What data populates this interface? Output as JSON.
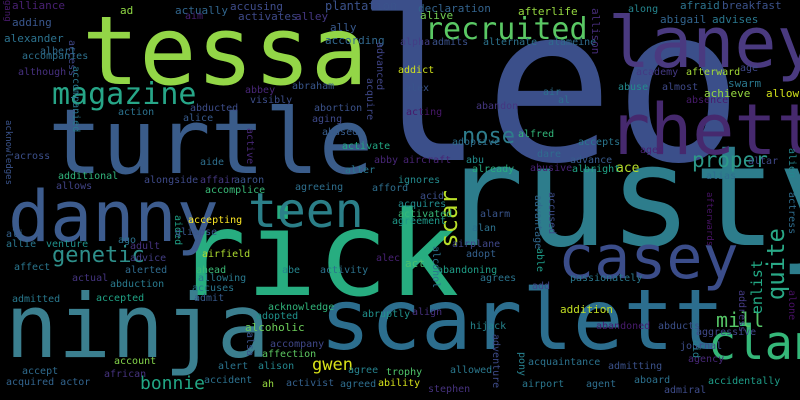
{
  "words": [
    {
      "text": "leo",
      "color": "#3b4f8a"
    },
    {
      "text": "rusty",
      "color": "#2d7d8c"
    },
    {
      "text": "rick",
      "color": "#27ad80"
    },
    {
      "text": "tessa",
      "color": "#93d647"
    },
    {
      "text": "turtle",
      "color": "#3a5c8a"
    },
    {
      "text": "ninja",
      "color": "#3b7f8f"
    },
    {
      "text": "scarlett",
      "color": "#2c6e8e"
    },
    {
      "text": "danny",
      "color": "#3d5c8e"
    },
    {
      "text": "laney",
      "color": "#4a3a80"
    },
    {
      "text": "rhett",
      "color": "#46296e"
    },
    {
      "text": "casey",
      "color": "#3b4d8a"
    },
    {
      "text": "teen",
      "color": "#2b7f88"
    },
    {
      "text": "clan",
      "color": "#35b779"
    },
    {
      "text": "magazine",
      "color": "#27a688"
    },
    {
      "text": "recruited",
      "color": "#5ac864"
    },
    {
      "text": "nose",
      "color": "#2e7d8c"
    },
    {
      "text": "scar",
      "color": "#b8de29"
    },
    {
      "text": "quite",
      "color": "#29a886"
    },
    {
      "text": "genetic",
      "color": "#2e8f8a"
    },
    {
      "text": "proper",
      "color": "#2c9889"
    },
    {
      "text": "mill",
      "color": "#56c667"
    },
    {
      "text": "bonnie",
      "color": "#22a785"
    },
    {
      "text": "gwen",
      "color": "#d8e219"
    },
    {
      "text": "enlist",
      "color": "#22a884"
    },
    {
      "text": "ace",
      "color": "#b5de2b"
    },
    {
      "text": "allison",
      "color": "#472d7b"
    },
    {
      "text": "alliance",
      "color": "#482071"
    },
    {
      "text": "ad",
      "color": "#8fd744"
    },
    {
      "text": "actually",
      "color": "#31668e"
    },
    {
      "text": "accusing",
      "color": "#3e4c8a"
    },
    {
      "text": "plantation",
      "color": "#3b528b"
    },
    {
      "text": "declaration",
      "color": "#33638d"
    },
    {
      "text": "afterlife",
      "color": "#95d840"
    },
    {
      "text": "along",
      "color": "#25858e"
    },
    {
      "text": "afraid",
      "color": "#2c738e"
    },
    {
      "text": "breakfast",
      "color": "#3b528b"
    },
    {
      "text": "adding",
      "color": "#39568c"
    },
    {
      "text": "aim",
      "color": "#481f70"
    },
    {
      "text": "activates",
      "color": "#3e4a89"
    },
    {
      "text": "alley",
      "color": "#453882"
    },
    {
      "text": "alive",
      "color": "#73d055"
    },
    {
      "text": "abigail",
      "color": "#32648e"
    },
    {
      "text": "advises",
      "color": "#2a778e"
    },
    {
      "text": "alexander",
      "color": "#2c728e"
    },
    {
      "text": "access",
      "color": "#3f4788"
    },
    {
      "text": "ally",
      "color": "#38598c"
    },
    {
      "text": "according",
      "color": "#31688e"
    },
    {
      "text": "alpha",
      "color": "#433e85"
    },
    {
      "text": "admits",
      "color": "#3b528b"
    },
    {
      "text": "alternate",
      "color": "#2c738e"
    },
    {
      "text": "alameine",
      "color": "#2f6c8e"
    },
    {
      "text": "albert",
      "color": "#2f6b8e"
    },
    {
      "text": "accompanies",
      "color": "#2d718e"
    },
    {
      "text": "advanced",
      "color": "#404588"
    },
    {
      "text": "addict",
      "color": "#d0e11c"
    },
    {
      "text": "academy",
      "color": "#443983"
    },
    {
      "text": "afterward",
      "color": "#a2da37"
    },
    {
      "text": "age",
      "color": "#3f4889"
    },
    {
      "text": "although",
      "color": "#46307e"
    },
    {
      "text": "swarm",
      "color": "#2a788e"
    },
    {
      "text": "accompanied",
      "color": "#2a778e"
    },
    {
      "text": "abbey",
      "color": "#482677"
    },
    {
      "text": "abraham",
      "color": "#39568c"
    },
    {
      "text": "alex",
      "color": "#3a538b"
    },
    {
      "text": "abandon",
      "color": "#453781"
    },
    {
      "text": "air",
      "color": "#2d708e"
    },
    {
      "text": "abuse",
      "color": "#238a8d"
    },
    {
      "text": "almost",
      "color": "#3e4989"
    },
    {
      "text": "achieve",
      "color": "#95d840"
    },
    {
      "text": "allow",
      "color": "#d2e21b"
    },
    {
      "text": "abducted",
      "color": "#3d4d8a"
    },
    {
      "text": "alice",
      "color": "#375a8c"
    },
    {
      "text": "visibly",
      "color": "#3d4e8a"
    },
    {
      "text": "action",
      "color": "#2c728e"
    },
    {
      "text": "aging",
      "color": "#3e4989"
    },
    {
      "text": "abortion",
      "color": "#3b528b"
    },
    {
      "text": "acquire",
      "color": "#3f4889"
    },
    {
      "text": "acting",
      "color": "#48186a"
    },
    {
      "text": "al",
      "color": "#2d718e"
    },
    {
      "text": "absence",
      "color": "#481b6d"
    },
    {
      "text": "acknowledges",
      "color": "#3a538b"
    },
    {
      "text": "active",
      "color": "#482878"
    },
    {
      "text": "activate",
      "color": "#22a884"
    },
    {
      "text": "alfred",
      "color": "#32b67a"
    },
    {
      "text": "accepts",
      "color": "#2a768e"
    },
    {
      "text": "aged",
      "color": "#482374"
    },
    {
      "text": "abused",
      "color": "#365c8d"
    },
    {
      "text": "adoptive",
      "color": "#2e6e8e"
    },
    {
      "text": "altar",
      "color": "#3f4788"
    },
    {
      "text": "abby",
      "color": "#482677"
    },
    {
      "text": "aircraft",
      "color": "#482475"
    },
    {
      "text": "abu",
      "color": "#228c8d"
    },
    {
      "text": "dare",
      "color": "#2f6b8e"
    },
    {
      "text": "advance",
      "color": "#375b8d"
    },
    {
      "text": "aide",
      "color": "#2e6f8e"
    },
    {
      "text": "across",
      "color": "#3c508b"
    },
    {
      "text": "additional",
      "color": "#30b47c"
    },
    {
      "text": "alter",
      "color": "#2a778e"
    },
    {
      "text": "already",
      "color": "#28ae80"
    },
    {
      "text": "abusive",
      "color": "#482374"
    },
    {
      "text": "albright",
      "color": "#20a386"
    },
    {
      "text": "alien",
      "color": "#24878e"
    },
    {
      "text": "alias",
      "color": "#2f6c8e"
    },
    {
      "text": "actress",
      "color": "#2e6d8e"
    },
    {
      "text": "allows",
      "color": "#414487"
    },
    {
      "text": "alongside",
      "color": "#3e4a89"
    },
    {
      "text": "affair",
      "color": "#453882"
    },
    {
      "text": "accomplice",
      "color": "#39b977"
    },
    {
      "text": "afford",
      "color": "#2e6e8e"
    },
    {
      "text": "acid",
      "color": "#3c4f8a"
    },
    {
      "text": "ignores",
      "color": "#238a8d"
    },
    {
      "text": "aaron",
      "color": "#3a538b"
    },
    {
      "text": "agreeing",
      "color": "#2e6f8e"
    },
    {
      "text": "acquires",
      "color": "#228b8d"
    },
    {
      "text": "accused",
      "color": "#3d4e8a"
    },
    {
      "text": "advantage",
      "color": "#31688e"
    },
    {
      "text": "activated",
      "color": "#37b878"
    },
    {
      "text": "afterwards",
      "color": "#471365"
    },
    {
      "text": "aided",
      "color": "#1fa287"
    },
    {
      "text": "glimpse",
      "color": "#39558c"
    },
    {
      "text": "accepting",
      "color": "#fde725"
    },
    {
      "text": "agreement",
      "color": "#1f998a"
    },
    {
      "text": "alarm",
      "color": "#39558c"
    },
    {
      "text": "alan",
      "color": "#2d718e"
    },
    {
      "text": "ali",
      "color": "#33628d"
    },
    {
      "text": "allie",
      "color": "#2a778e"
    },
    {
      "text": "venture",
      "color": "#20928c"
    },
    {
      "text": "ago",
      "color": "#2c728e"
    },
    {
      "text": "airplane",
      "color": "#3f4788"
    },
    {
      "text": "adult",
      "color": "#46327e"
    },
    {
      "text": "advice",
      "color": "#433e85"
    },
    {
      "text": "airfield",
      "color": "#addc30"
    },
    {
      "text": "alec",
      "color": "#482173"
    },
    {
      "text": "alcohol",
      "color": "#2c738e"
    },
    {
      "text": "able",
      "color": "#1e9c89"
    },
    {
      "text": "adopt",
      "color": "#34608d"
    },
    {
      "text": "affect",
      "color": "#2a768e"
    },
    {
      "text": "actual",
      "color": "#453581"
    },
    {
      "text": "abduction",
      "color": "#297b8e"
    },
    {
      "text": "alerted",
      "color": "#2f6b8e"
    },
    {
      "text": "ahead",
      "color": "#3aba76"
    },
    {
      "text": "abe",
      "color": "#24868e"
    },
    {
      "text": "activity",
      "color": "#2c738e"
    },
    {
      "text": "act",
      "color": "#4ac16d"
    },
    {
      "text": "abandoning",
      "color": "#1f9f88"
    },
    {
      "text": "agrees",
      "color": "#2b748e"
    },
    {
      "text": "add",
      "color": "#3f4788"
    },
    {
      "text": "passionately",
      "color": "#2a788e"
    },
    {
      "text": "abandoned",
      "color": "#481c6e"
    },
    {
      "text": "abducts",
      "color": "#3c508b"
    },
    {
      "text": "address",
      "color": "#443a83"
    },
    {
      "text": "alone",
      "color": "#471063"
    },
    {
      "text": "admitted",
      "color": "#29798e"
    },
    {
      "text": "accepted",
      "color": "#20a386"
    },
    {
      "text": "admit",
      "color": "#375a8c"
    },
    {
      "text": "allowing",
      "color": "#29798e"
    },
    {
      "text": "accuses",
      "color": "#2a778e"
    },
    {
      "text": "acknowledge",
      "color": "#31b57b"
    },
    {
      "text": "abruptly",
      "color": "#21918c"
    },
    {
      "text": "align",
      "color": "#46307e"
    },
    {
      "text": "hijack",
      "color": "#25858e"
    },
    {
      "text": "addition",
      "color": "#c2df23"
    },
    {
      "text": "journal",
      "color": "#3d4e8a"
    },
    {
      "text": "agency",
      "color": "#482878"
    },
    {
      "text": "aggressive",
      "color": "#3f4889"
    },
    {
      "text": "alcoholic",
      "color": "#6ccd5a"
    },
    {
      "text": "alsa",
      "color": "#3b528b"
    },
    {
      "text": "account",
      "color": "#84d44b"
    },
    {
      "text": "african",
      "color": "#46337f"
    },
    {
      "text": "accompany",
      "color": "#3f4788"
    },
    {
      "text": "affection",
      "color": "#5ec962"
    },
    {
      "text": "alison",
      "color": "#24868e"
    },
    {
      "text": "agree",
      "color": "#26828e"
    },
    {
      "text": "trophy",
      "color": "#4fc46a"
    },
    {
      "text": "allowed",
      "color": "#2a788e"
    },
    {
      "text": "adventure",
      "color": "#3e4c8a"
    },
    {
      "text": "pony",
      "color": "#27808e"
    },
    {
      "text": "acquaintance",
      "color": "#2c738e"
    },
    {
      "text": "admitting",
      "color": "#3b528b"
    },
    {
      "text": "aid",
      "color": "#27808e"
    },
    {
      "text": "accidentally",
      "color": "#1f9e89"
    },
    {
      "text": "accept",
      "color": "#2f6b8e"
    },
    {
      "text": "acquired actor",
      "color": "#32648e"
    },
    {
      "text": "alert",
      "color": "#2b748e"
    },
    {
      "text": "accident",
      "color": "#2c718e"
    },
    {
      "text": "ah",
      "color": "#95d840"
    },
    {
      "text": "activist",
      "color": "#34618d"
    },
    {
      "text": "agreed",
      "color": "#2e6e8e"
    },
    {
      "text": "ability",
      "color": "#d5e21a"
    },
    {
      "text": "stephen",
      "color": "#46327e"
    },
    {
      "text": "airport",
      "color": "#2a778e"
    },
    {
      "text": "agent",
      "color": "#2e6e8e"
    },
    {
      "text": "aboard",
      "color": "#2c718e"
    },
    {
      "text": "admiral",
      "color": "#3e4c8a"
    },
    {
      "text": "adopted",
      "color": "#20928c"
    },
    {
      "text": "gang",
      "color": "#481a6c"
    }
  ]
}
